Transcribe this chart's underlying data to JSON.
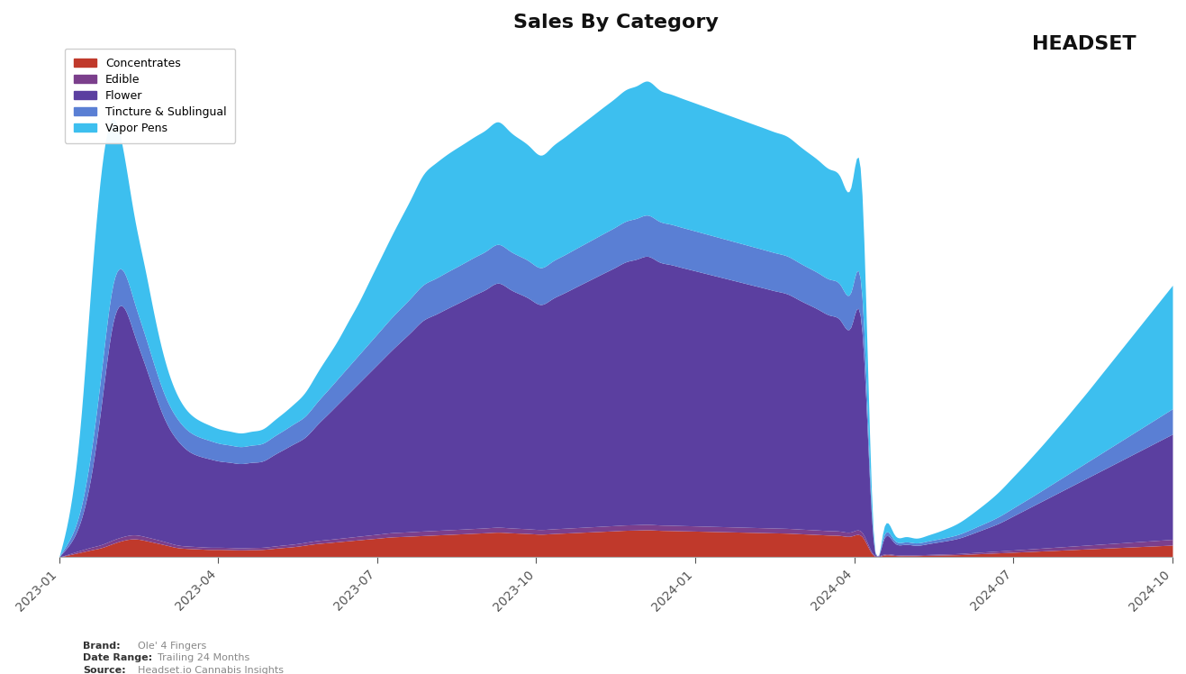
{
  "title": "Sales By Category",
  "categories": [
    "Concentrates",
    "Edible",
    "Flower",
    "Tincture & Sublingual",
    "Vapor Pens"
  ],
  "colors": [
    "#c0392b",
    "#7b3f8c",
    "#5b3fa0",
    "#5a7fd4",
    "#3dbfef"
  ],
  "background_color": "#ffffff",
  "x_tick_labels": [
    "2023-01",
    "2023-04",
    "2023-07",
    "2023-10",
    "2024-01",
    "2024-04",
    "2024-07",
    "2024-10"
  ],
  "footer_brand": "Ole' 4 Fingers",
  "footer_date": "Trailing 24 Months",
  "footer_source": "Headset.io Cannabis Insights",
  "concentrates": [
    0,
    50,
    100,
    150,
    200,
    280,
    350,
    380,
    350,
    300,
    250,
    200,
    180,
    170,
    160,
    160,
    155,
    150,
    155,
    160,
    180,
    200,
    220,
    250,
    280,
    300,
    320,
    340,
    360,
    380,
    400,
    420,
    430,
    440,
    450,
    460,
    470,
    480,
    490,
    500,
    510,
    520,
    510,
    500,
    490,
    480,
    490,
    500,
    510,
    520,
    530,
    540,
    550,
    560,
    565,
    570,
    560,
    555,
    550,
    545,
    540,
    535,
    530,
    525,
    520,
    515,
    510,
    505,
    500,
    490,
    480,
    470,
    460,
    450,
    440,
    430,
    50,
    40,
    35,
    30,
    30,
    35,
    40,
    45,
    50,
    60,
    70,
    80,
    90,
    100,
    110,
    120,
    130,
    140,
    150,
    160,
    170,
    180,
    190,
    200,
    210,
    220,
    230,
    240,
    250
  ],
  "edible": [
    0,
    20,
    40,
    55,
    65,
    75,
    80,
    85,
    80,
    75,
    65,
    55,
    50,
    48,
    46,
    45,
    44,
    43,
    44,
    45,
    48,
    52,
    55,
    58,
    62,
    65,
    68,
    72,
    76,
    80,
    84,
    88,
    90,
    92,
    94,
    95,
    96,
    97,
    98,
    100,
    102,
    104,
    102,
    100,
    98,
    96,
    98,
    100,
    102,
    104,
    106,
    108,
    110,
    112,
    113,
    114,
    112,
    111,
    110,
    109,
    108,
    107,
    106,
    105,
    104,
    103,
    102,
    101,
    100,
    98,
    96,
    94,
    92,
    90,
    88,
    86,
    25,
    20,
    18,
    16,
    16,
    18,
    20,
    22,
    24,
    28,
    32,
    36,
    40,
    45,
    50,
    55,
    60,
    65,
    70,
    75,
    80,
    85,
    90,
    95,
    100,
    105,
    110,
    115,
    120
  ],
  "flower": [
    0,
    200,
    600,
    1500,
    3000,
    4500,
    4800,
    4200,
    3600,
    3000,
    2500,
    2200,
    2000,
    1900,
    1850,
    1800,
    1780,
    1760,
    1780,
    1800,
    1900,
    2000,
    2100,
    2200,
    2400,
    2600,
    2800,
    3000,
    3200,
    3400,
    3600,
    3800,
    4000,
    4200,
    4400,
    4500,
    4600,
    4700,
    4800,
    4900,
    5000,
    5100,
    5000,
    4900,
    4800,
    4700,
    4800,
    4900,
    5000,
    5100,
    5200,
    5300,
    5400,
    5500,
    5550,
    5600,
    5500,
    5450,
    5400,
    5350,
    5300,
    5250,
    5200,
    5150,
    5100,
    5050,
    5000,
    4950,
    4900,
    4800,
    4700,
    4600,
    4500,
    4400,
    4300,
    4200,
    400,
    300,
    250,
    220,
    200,
    220,
    250,
    280,
    320,
    380,
    450,
    520,
    600,
    700,
    800,
    900,
    1000,
    1100,
    1200,
    1300,
    1400,
    1500,
    1600,
    1700,
    1800,
    1900,
    2000,
    2100,
    2200
  ],
  "tincture": [
    0,
    100,
    250,
    500,
    700,
    800,
    750,
    680,
    620,
    560,
    500,
    450,
    420,
    400,
    385,
    370,
    360,
    355,
    360,
    370,
    385,
    400,
    420,
    440,
    470,
    500,
    530,
    560,
    590,
    620,
    650,
    680,
    700,
    720,
    740,
    750,
    760,
    770,
    780,
    790,
    800,
    810,
    800,
    790,
    780,
    770,
    780,
    790,
    800,
    810,
    820,
    830,
    840,
    850,
    855,
    860,
    850,
    845,
    840,
    835,
    830,
    825,
    820,
    815,
    810,
    805,
    800,
    795,
    790,
    780,
    770,
    760,
    750,
    740,
    730,
    720,
    80,
    65,
    55,
    50,
    50,
    55,
    62,
    70,
    80,
    95,
    110,
    125,
    145,
    165,
    185,
    205,
    230,
    255,
    280,
    305,
    330,
    355,
    380,
    405,
    430,
    455,
    480,
    505,
    530
  ],
  "vapor_pens": [
    0,
    600,
    1800,
    3500,
    4200,
    3500,
    2500,
    1800,
    1400,
    1000,
    700,
    500,
    400,
    350,
    320,
    300,
    290,
    285,
    290,
    300,
    330,
    370,
    420,
    500,
    600,
    700,
    800,
    950,
    1100,
    1300,
    1500,
    1700,
    1900,
    2100,
    2300,
    2400,
    2450,
    2480,
    2500,
    2520,
    2540,
    2560,
    2500,
    2450,
    2400,
    2350,
    2400,
    2450,
    2500,
    2550,
    2600,
    2650,
    2700,
    2750,
    2770,
    2800,
    2750,
    2720,
    2700,
    2680,
    2660,
    2640,
    2620,
    2600,
    2580,
    2560,
    2540,
    2520,
    2500,
    2450,
    2400,
    2350,
    2300,
    2250,
    2200,
    2150,
    200,
    150,
    120,
    110,
    100,
    120,
    150,
    190,
    240,
    300,
    370,
    450,
    540,
    640,
    740,
    850,
    960,
    1080,
    1200,
    1330,
    1460,
    1600,
    1740,
    1880,
    2020,
    2160,
    2300,
    2440,
    2580
  ]
}
